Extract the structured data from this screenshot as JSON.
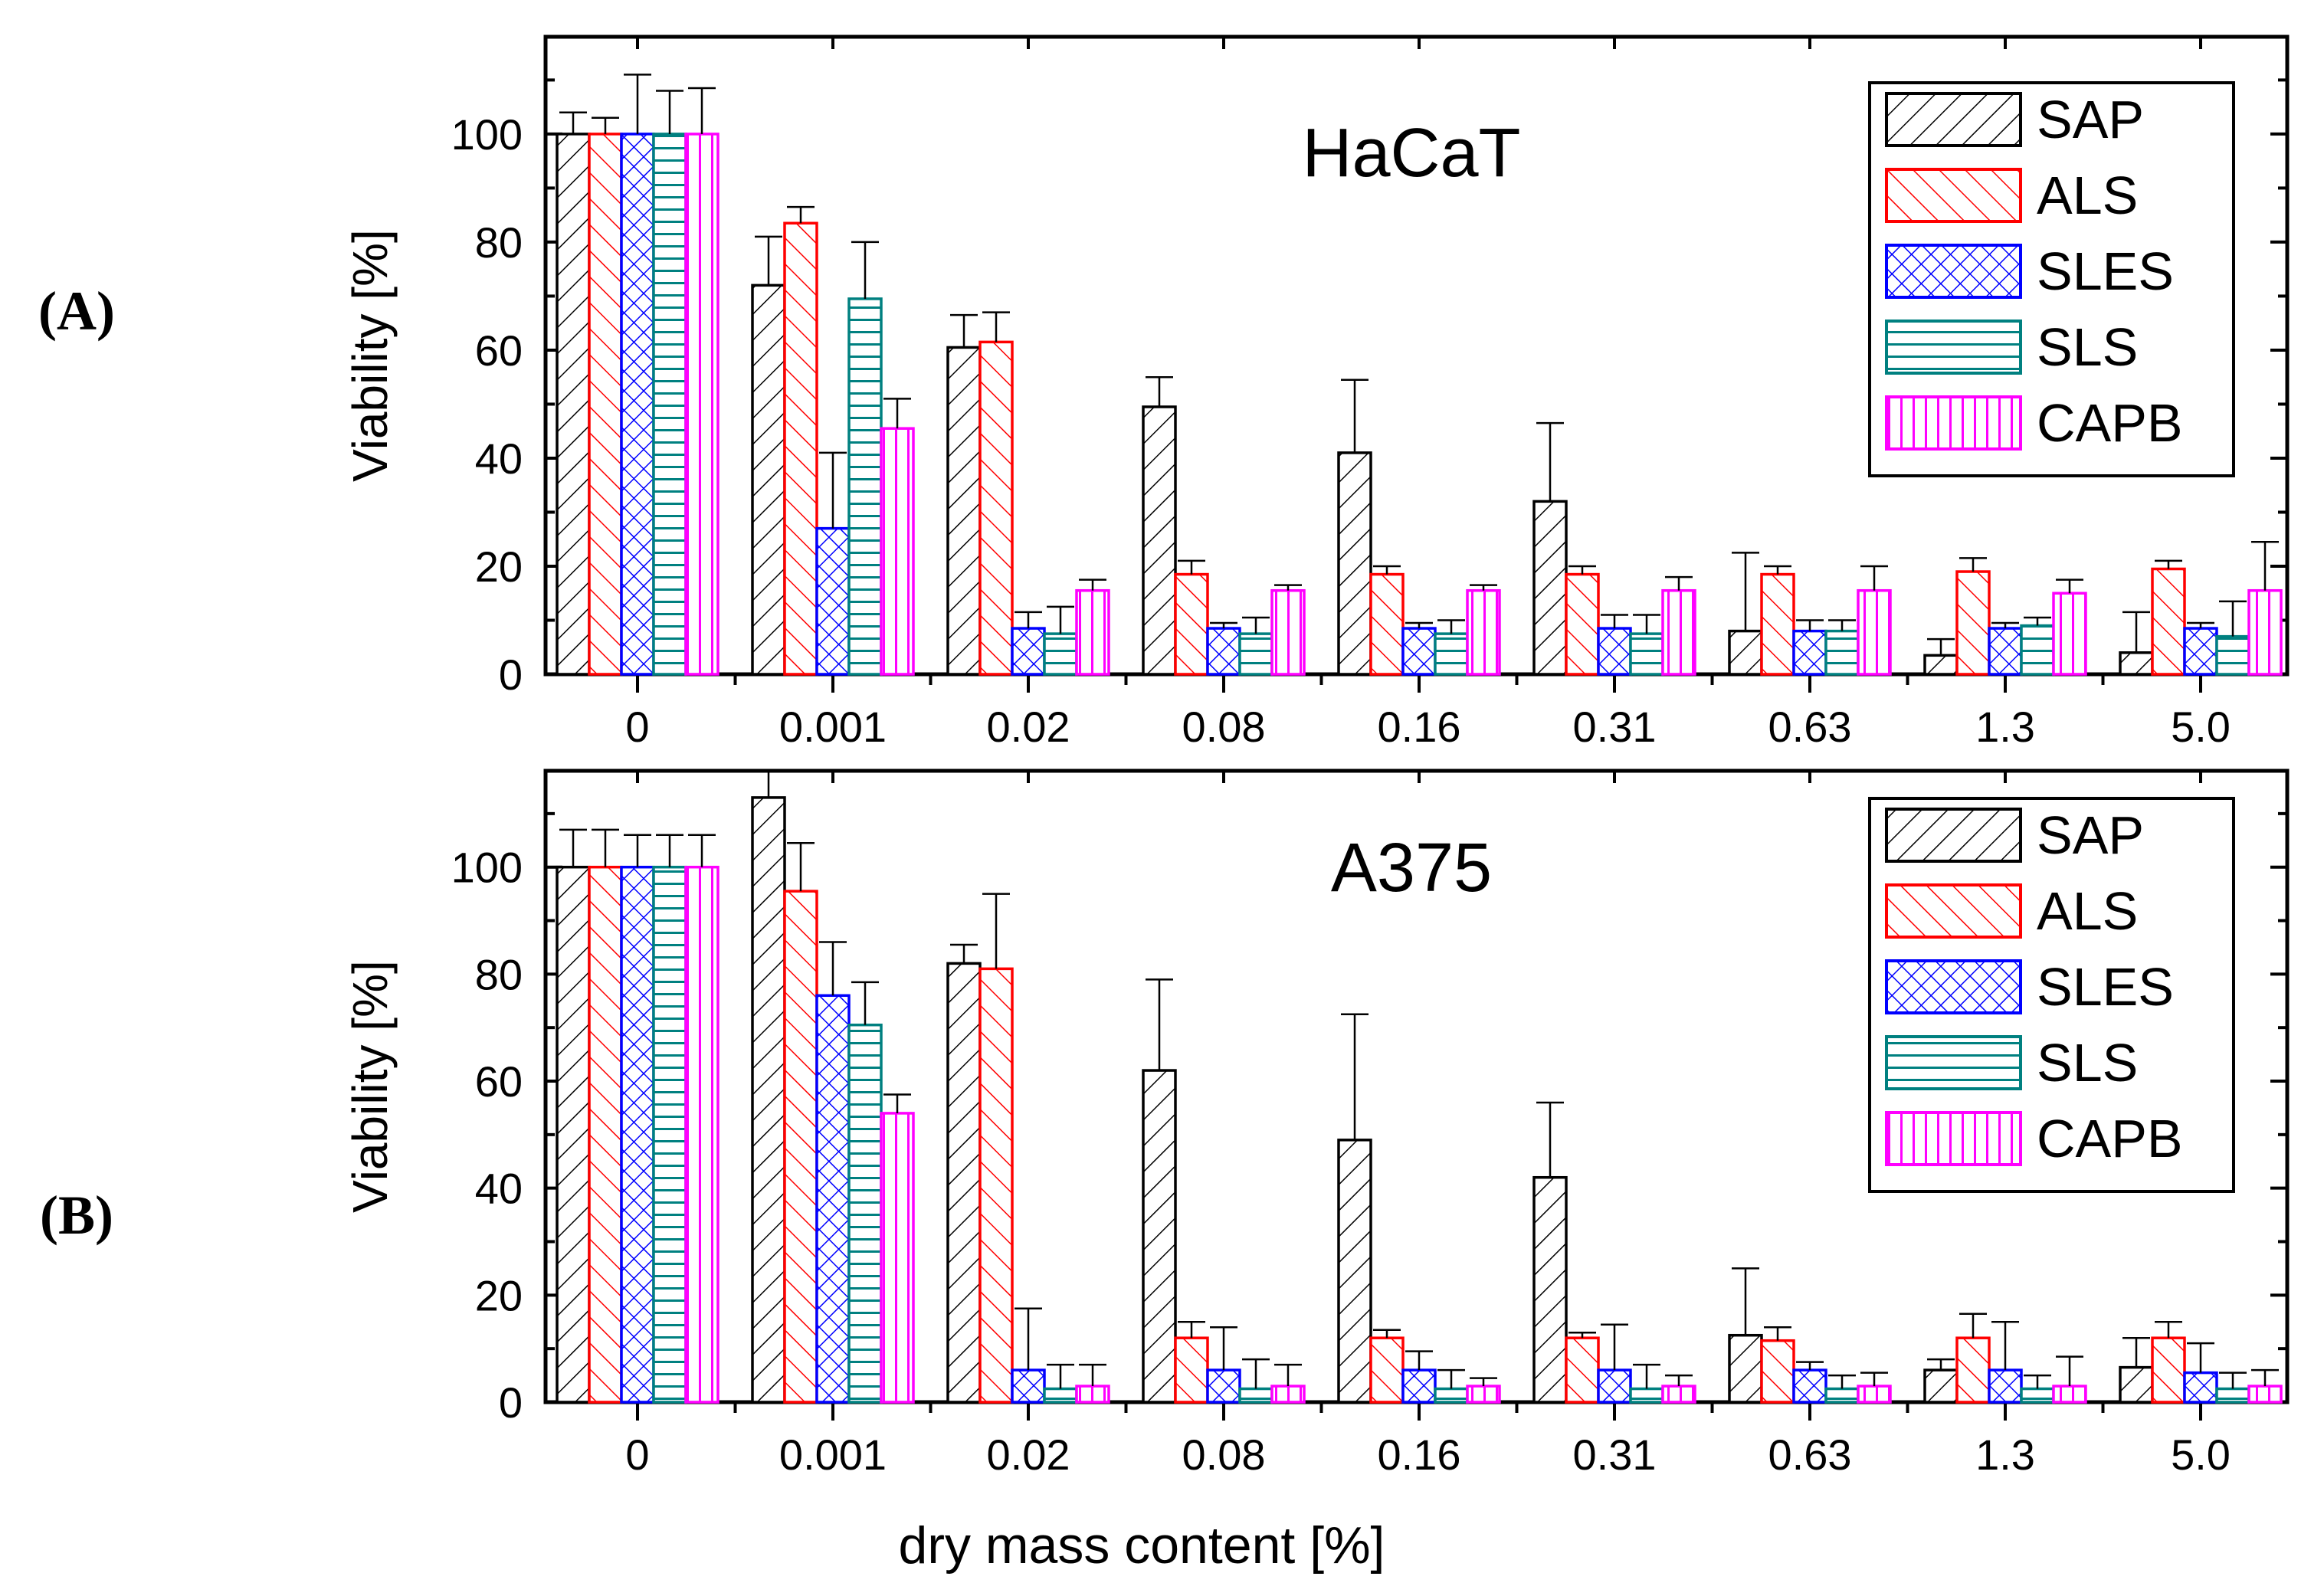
{
  "figure": {
    "x_label": "dry mass content [%]"
  },
  "legend_patterns": {
    "SAP": "diagonal-fwd",
    "ALS": "diagonal-back",
    "SLES": "crosshatch",
    "SLS": "horizontal",
    "CAPB": "vertical"
  },
  "chart_data": [
    {
      "type": "bar",
      "panel_label": "(A)",
      "title": "HaCaT",
      "xlabel": "dry mass content [%]",
      "ylabel": "Viability [%]",
      "ylim": [
        0,
        118
      ],
      "yticks": [
        "0",
        "20",
        "40",
        "60",
        "80",
        "100"
      ],
      "legend_position": "top-right",
      "categories": [
        "0",
        "0.001",
        "0.02",
        "0.08",
        "0.16",
        "0.31",
        "0.63",
        "1.3",
        "5.0"
      ],
      "series": [
        {
          "name": "SAP",
          "color": "#000000",
          "values": [
            100,
            72,
            60.5,
            49.5,
            41,
            32,
            8,
            3.5,
            4
          ],
          "errors": [
            4,
            9,
            6,
            5.5,
            13.5,
            14.5,
            14.5,
            3,
            7.5
          ]
        },
        {
          "name": "ALS",
          "color": "#ff0000",
          "values": [
            100,
            83.5,
            61.5,
            18.5,
            18.5,
            18.5,
            18.5,
            19,
            19.5
          ],
          "errors": [
            3,
            3,
            5.5,
            2.5,
            1.5,
            1.5,
            1.5,
            2.5,
            1.5
          ]
        },
        {
          "name": "SLES",
          "color": "#0000ff",
          "values": [
            100,
            27,
            8.5,
            8.5,
            8.5,
            8.5,
            8,
            8.5,
            8.5
          ],
          "errors": [
            11,
            14,
            3,
            1,
            1,
            2.5,
            2,
            1,
            1
          ]
        },
        {
          "name": "SLS",
          "color": "#008080",
          "values": [
            100,
            69.5,
            7.5,
            7.5,
            7.5,
            7.5,
            8,
            9,
            7
          ],
          "errors": [
            8,
            10.5,
            5,
            3,
            2.5,
            3.5,
            2,
            1.5,
            6.5
          ]
        },
        {
          "name": "CAPB",
          "color": "#ff00ff",
          "values": [
            100,
            45.5,
            15.5,
            15.5,
            15.5,
            15.5,
            15.5,
            15,
            15.5
          ],
          "errors": [
            8.5,
            5.5,
            2,
            1,
            1,
            2.5,
            4.5,
            2.5,
            9
          ]
        }
      ]
    },
    {
      "type": "bar",
      "panel_label": "(B)",
      "title": "A375",
      "xlabel": "dry mass content [%]",
      "ylabel": "Viability [%]",
      "ylim": [
        0,
        118
      ],
      "yticks": [
        "0",
        "20",
        "40",
        "60",
        "80",
        "100"
      ],
      "legend_position": "top-right",
      "categories": [
        "0",
        "0.001",
        "0.02",
        "0.08",
        "0.16",
        "0.31",
        "0.63",
        "1.3",
        "5.0"
      ],
      "series": [
        {
          "name": "SAP",
          "color": "#000000",
          "values": [
            100,
            113,
            82,
            62,
            49,
            42,
            12.5,
            6,
            6.5
          ],
          "errors": [
            7,
            5.5,
            3.5,
            17,
            23.5,
            14,
            12.5,
            2,
            5.5
          ]
        },
        {
          "name": "ALS",
          "color": "#ff0000",
          "values": [
            100,
            95.5,
            81,
            12,
            12,
            12,
            11.5,
            12,
            12
          ],
          "errors": [
            7,
            9,
            14,
            3,
            1.5,
            1,
            2.5,
            4.5,
            3
          ]
        },
        {
          "name": "SLES",
          "color": "#0000ff",
          "values": [
            100,
            76,
            6,
            6,
            6,
            6,
            6,
            6,
            5.5
          ],
          "errors": [
            6,
            10,
            11.5,
            8,
            3.5,
            8.5,
            1.5,
            9,
            5.5
          ]
        },
        {
          "name": "SLS",
          "color": "#008080",
          "values": [
            100,
            70.5,
            2.5,
            2.5,
            2.5,
            2.5,
            2.5,
            2.5,
            2.5
          ],
          "errors": [
            6,
            8,
            4.5,
            5.5,
            3.5,
            4.5,
            2.5,
            2.5,
            3
          ]
        },
        {
          "name": "CAPB",
          "color": "#ff00ff",
          "values": [
            100,
            54,
            3,
            3,
            3,
            3,
            3,
            3,
            3
          ],
          "errors": [
            6,
            3.5,
            4,
            4,
            1.5,
            2,
            2.5,
            5.5,
            3
          ]
        }
      ]
    }
  ]
}
